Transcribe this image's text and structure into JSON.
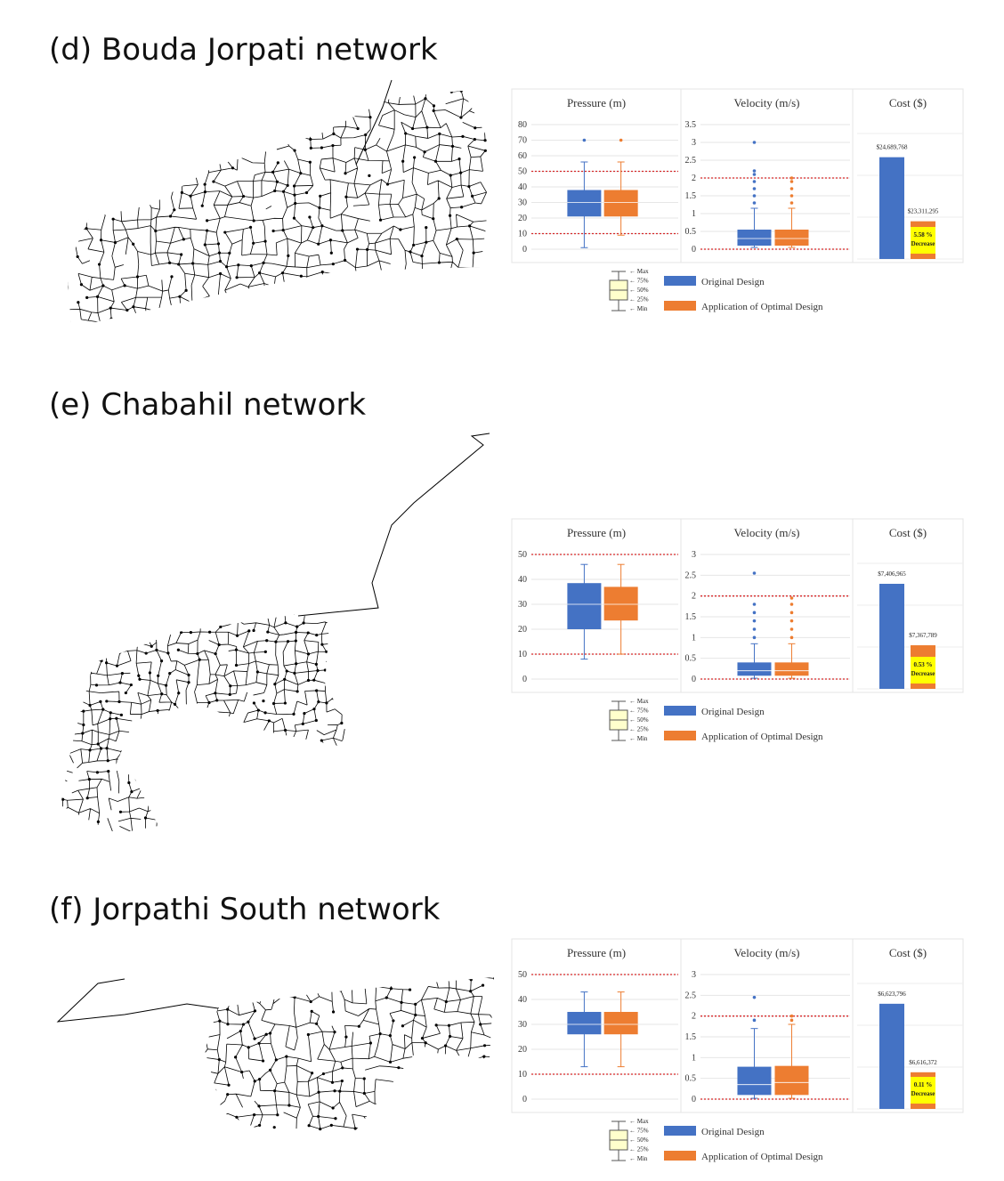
{
  "panels": [
    {
      "title": "(d)  Bouda  Jorpati  network"
    },
    {
      "title": "(e)  Chabahil  network"
    },
    {
      "title": "(f)  Jorpathi  South  network"
    }
  ],
  "box_legend": [
    "← Max",
    "← 75%",
    "← 50%",
    "← 25%",
    "← Min"
  ],
  "chart_data": [
    {
      "type": "box",
      "title": "Pressure (m)",
      "ylim": [
        0,
        80
      ],
      "yticks": [
        0,
        10,
        20,
        30,
        40,
        50,
        60,
        70,
        80
      ],
      "reference_lines": [
        10,
        50
      ],
      "series": [
        {
          "name": "Original Design",
          "color": "#4472c4",
          "min": 1,
          "q1": 21,
          "median": 30,
          "q3": 38,
          "max": 56,
          "outliers": [
            70
          ]
        },
        {
          "name": "Application of Optimal Design",
          "color": "#ed7d31",
          "min": 9,
          "q1": 21,
          "median": 30,
          "q3": 38,
          "max": 56,
          "outliers": [
            70
          ]
        }
      ]
    },
    {
      "type": "box",
      "title": "Velocity (m/s)",
      "ylim": [
        0,
        3.5
      ],
      "yticks": [
        0,
        0.5,
        1,
        1.5,
        2,
        2.5,
        3,
        3.5
      ],
      "reference_lines": [
        0,
        2
      ],
      "series": [
        {
          "name": "Original Design",
          "color": "#4472c4",
          "min": 0.05,
          "q1": 0.1,
          "median": 0.3,
          "q3": 0.55,
          "max": 1.15,
          "outliers": [
            1.3,
            1.5,
            1.7,
            1.9,
            2.1,
            2.2,
            3.0
          ]
        },
        {
          "name": "Application of Optimal Design",
          "color": "#ed7d31",
          "min": 0.05,
          "q1": 0.1,
          "median": 0.3,
          "q3": 0.55,
          "max": 1.15,
          "outliers": [
            1.3,
            1.5,
            1.7,
            1.9,
            2.0
          ]
        }
      ]
    },
    {
      "type": "bar",
      "title": "Cost ($)",
      "ylim": [
        22500000,
        25200000
      ],
      "values": [
        24689768,
        23311295
      ],
      "value_labels": [
        "$24,689,768",
        "$23,311,295"
      ],
      "colors": [
        "#4472c4",
        "#ed7d31"
      ],
      "annotation": [
        "5.58 %",
        "Decrease"
      ]
    },
    {
      "type": "box",
      "title": "Pressure (m)",
      "ylim": [
        0,
        50
      ],
      "yticks": [
        0,
        10,
        20,
        30,
        40,
        50
      ],
      "reference_lines": [
        10,
        50
      ],
      "series": [
        {
          "name": "Original Design",
          "color": "#4472c4",
          "min": 8,
          "q1": 20,
          "median": 30,
          "q3": 38.5,
          "max": 46,
          "outliers": []
        },
        {
          "name": "Application of Optimal Design",
          "color": "#ed7d31",
          "min": 10,
          "q1": 23.5,
          "median": 30,
          "q3": 37,
          "max": 46,
          "outliers": []
        }
      ]
    },
    {
      "type": "box",
      "title": "Velocity (m/s)",
      "ylim": [
        0,
        3
      ],
      "yticks": [
        0,
        0.5,
        1,
        1.5,
        2,
        2.5,
        3
      ],
      "reference_lines": [
        0,
        2
      ],
      "series": [
        {
          "name": "Original Design",
          "color": "#4472c4",
          "min": 0.02,
          "q1": 0.08,
          "median": 0.2,
          "q3": 0.4,
          "max": 0.85,
          "outliers": [
            1.0,
            1.2,
            1.4,
            1.6,
            1.8,
            2.55
          ]
        },
        {
          "name": "Application of Optimal Design",
          "color": "#ed7d31",
          "min": 0.02,
          "q1": 0.08,
          "median": 0.2,
          "q3": 0.4,
          "max": 0.85,
          "outliers": [
            1.0,
            1.2,
            1.4,
            1.6,
            1.8,
            1.95
          ]
        }
      ]
    },
    {
      "type": "bar",
      "title": "Cost ($)",
      "ylim": [
        7340000,
        7420000
      ],
      "values": [
        7406965,
        7367789
      ],
      "value_labels": [
        "$7,406,965",
        "$7,367,789"
      ],
      "colors": [
        "#4472c4",
        "#ed7d31"
      ],
      "annotation": [
        "0.53 %",
        "Decrease"
      ]
    },
    {
      "type": "box",
      "title": "Pressure (m)",
      "ylim": [
        0,
        50
      ],
      "yticks": [
        0,
        10,
        20,
        30,
        40,
        50
      ],
      "reference_lines": [
        10,
        50
      ],
      "series": [
        {
          "name": "Original Design",
          "color": "#4472c4",
          "min": 13,
          "q1": 26,
          "median": 30,
          "q3": 35,
          "max": 43,
          "outliers": []
        },
        {
          "name": "Application of Optimal Design",
          "color": "#ed7d31",
          "min": 13,
          "q1": 26,
          "median": 30,
          "q3": 35,
          "max": 43,
          "outliers": []
        }
      ]
    },
    {
      "type": "box",
      "title": "Velocity (m/s)",
      "ylim": [
        0,
        3
      ],
      "yticks": [
        0,
        0.5,
        1,
        1.5,
        2,
        2.5,
        3
      ],
      "reference_lines": [
        0,
        2
      ],
      "series": [
        {
          "name": "Original Design",
          "color": "#4472c4",
          "min": 0.02,
          "q1": 0.1,
          "median": 0.35,
          "q3": 0.78,
          "max": 1.7,
          "outliers": [
            1.9,
            2.45
          ]
        },
        {
          "name": "Application of Optimal Design",
          "color": "#ed7d31",
          "min": 0.02,
          "q1": 0.1,
          "median": 0.4,
          "q3": 0.8,
          "max": 1.8,
          "outliers": [
            1.9,
            2.0
          ]
        }
      ]
    },
    {
      "type": "bar",
      "title": "Cost ($)",
      "ylim": [
        6612400,
        6626000
      ],
      "values": [
        6623796,
        6616372
      ],
      "value_labels": [
        "$6,623,796",
        "$6,616,372"
      ],
      "colors": [
        "#4472c4",
        "#ed7d31"
      ],
      "annotation": [
        "0.11 %",
        "Decrease"
      ]
    }
  ]
}
